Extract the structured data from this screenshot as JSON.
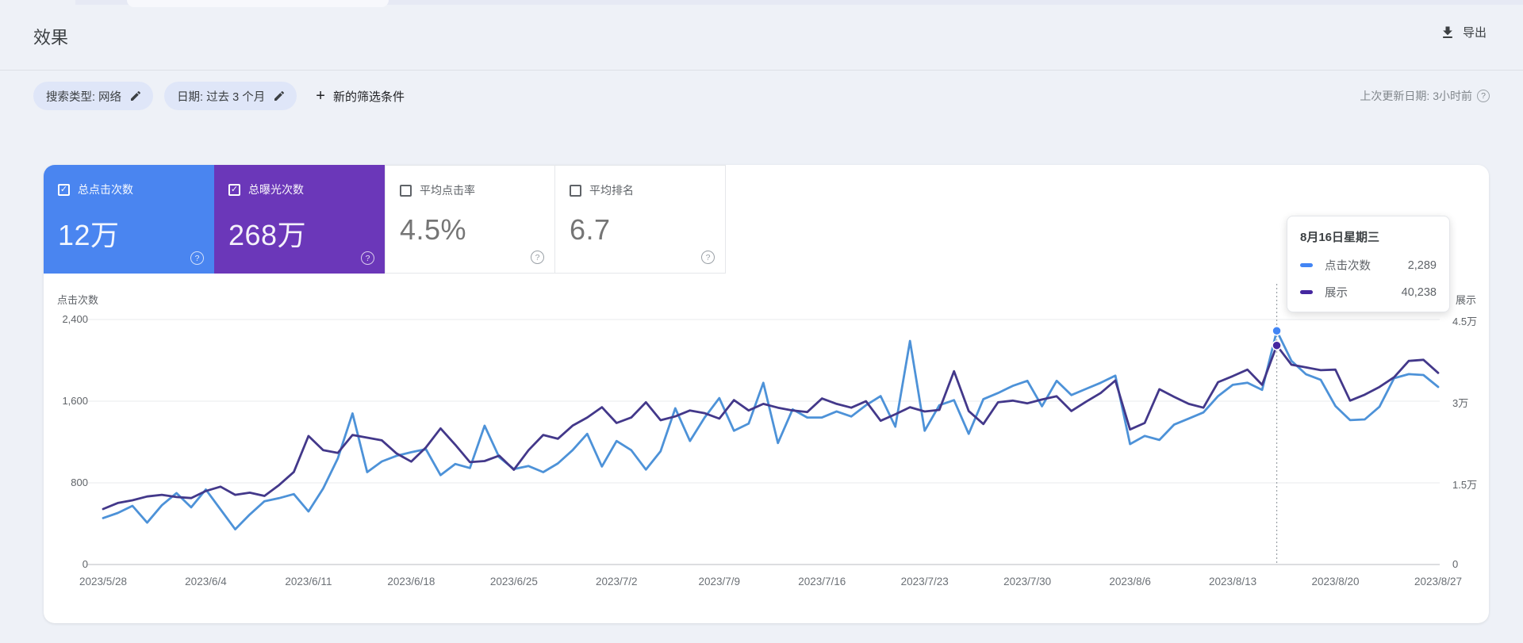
{
  "header": {
    "title": "效果",
    "export_label": "导出",
    "last_updated": "上次更新日期: 3小时前"
  },
  "filters": {
    "chips": [
      {
        "label": "搜索类型: 网络"
      },
      {
        "label": "日期: 过去 3 个月"
      }
    ],
    "new_filter_label": "新的筛选条件",
    "plus_glyph": "+"
  },
  "cards": [
    {
      "key": "total-clicks",
      "label": "总点击次数",
      "value": "12万",
      "selected": true,
      "bg": "#4a85f0"
    },
    {
      "key": "total-impressions",
      "label": "总曝光次数",
      "value": "268万",
      "selected": true,
      "bg": "#6b37b9"
    },
    {
      "key": "average-ctr",
      "label": "平均点击率",
      "value": "4.5%",
      "selected": false,
      "bg": "#ffffff"
    },
    {
      "key": "average-position",
      "label": "平均排名",
      "value": "6.7",
      "selected": false,
      "bg": "#ffffff"
    }
  ],
  "checkbox_glyph": "✓",
  "help_glyph": "?",
  "tooltip": {
    "title": "8月16日星期三",
    "rows": [
      {
        "label": "点击次数",
        "value": "2,289",
        "swatch": "#4285f4"
      },
      {
        "label": "展示",
        "value": "40,238",
        "swatch": "#4527a0"
      }
    ]
  },
  "chart_data": {
    "type": "line",
    "title": "",
    "date_range": {
      "start": "2023/5/28",
      "end": "2023/8/27"
    },
    "x_tick_labels": [
      "2023/5/28",
      "2023/6/4",
      "2023/6/11",
      "2023/6/18",
      "2023/6/25",
      "2023/7/2",
      "2023/7/9",
      "2023/7/16",
      "2023/7/23",
      "2023/7/30",
      "2023/8/6",
      "2023/8/13",
      "2023/8/20",
      "2023/8/27"
    ],
    "x_tick_day_indices": [
      0,
      7,
      14,
      21,
      28,
      35,
      42,
      49,
      56,
      63,
      70,
      77,
      84,
      91
    ],
    "left_axis": {
      "title": "点击次数",
      "ticks": [
        0,
        800,
        1600,
        2400
      ],
      "tick_labels": [
        "0",
        "800",
        "1,600",
        "2,400"
      ],
      "max": 2400
    },
    "right_axis": {
      "title": "展示",
      "ticks": [
        0,
        15000,
        30000,
        45000
      ],
      "tick_labels": [
        "0",
        "1.5万",
        "3万",
        "4.5万"
      ],
      "max": 45000
    },
    "grid": true,
    "legend_position": "tooltip-only",
    "series": [
      {
        "name": "点击次数",
        "axis": "left",
        "color": "#4d92d8",
        "values": [
          455,
          505,
          575,
          410,
          580,
          700,
          560,
          735,
          540,
          345,
          490,
          620,
          650,
          690,
          520,
          745,
          1040,
          1480,
          905,
          1010,
          1065,
          1100,
          1130,
          875,
          985,
          945,
          1360,
          1050,
          935,
          965,
          905,
          990,
          1120,
          1280,
          960,
          1210,
          1120,
          930,
          1110,
          1530,
          1210,
          1440,
          1630,
          1310,
          1380,
          1780,
          1190,
          1520,
          1440,
          1440,
          1500,
          1450,
          1560,
          1650,
          1350,
          2190,
          1310,
          1560,
          1610,
          1280,
          1620,
          1680,
          1750,
          1800,
          1550,
          1800,
          1660,
          1720,
          1780,
          1850,
          1180,
          1260,
          1220,
          1370,
          1430,
          1490,
          1650,
          1760,
          1780,
          1710,
          2289,
          1995,
          1863,
          1809,
          1553,
          1414,
          1421,
          1545,
          1825,
          1865,
          1856,
          1740
        ]
      },
      {
        "name": "展示",
        "axis": "right",
        "color": "#43388a",
        "values": [
          10200,
          11300,
          11800,
          12500,
          12800,
          12400,
          12200,
          13500,
          14300,
          12800,
          13200,
          12600,
          14600,
          17000,
          23600,
          21000,
          20500,
          23800,
          23300,
          22800,
          20400,
          18900,
          21500,
          25000,
          22000,
          18800,
          19000,
          20000,
          17400,
          21000,
          23800,
          23100,
          25500,
          27000,
          28900,
          26000,
          27000,
          29800,
          26500,
          27200,
          28300,
          27800,
          26800,
          30200,
          28300,
          29500,
          28800,
          28300,
          28000,
          30500,
          29500,
          28800,
          30000,
          26400,
          27600,
          28900,
          28100,
          28400,
          35500,
          28200,
          25800,
          29800,
          30100,
          29600,
          30300,
          30900,
          28200,
          29900,
          31500,
          33800,
          24800,
          26000,
          32200,
          30800,
          29500,
          28800,
          33500,
          34600,
          35800,
          33000,
          40238,
          36700,
          36200,
          35700,
          35800,
          30100,
          31200,
          32600,
          34400,
          37400,
          37600,
          35200
        ]
      }
    ],
    "highlight": {
      "date": "2023/8/16",
      "day_index": 80,
      "clicks": 2289,
      "impressions": 40238,
      "marker_colors": {
        "clicks": "#4285f4",
        "impressions": "#4527a0"
      }
    }
  }
}
